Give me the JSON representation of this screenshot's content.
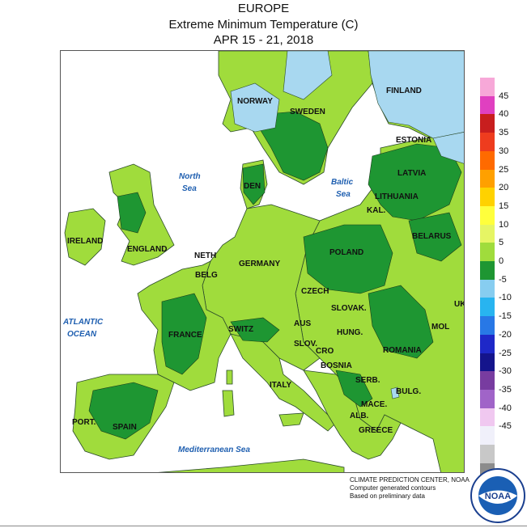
{
  "header": {
    "region": "EUROPE",
    "variable": "Extreme Minimum Temperature (C)",
    "period": "APR 15 - 21, 2018"
  },
  "legend": {
    "ticks": [
      "45",
      "40",
      "35",
      "30",
      "25",
      "20",
      "15",
      "10",
      "5",
      "0",
      "-5",
      "-10",
      "-15",
      "-20",
      "-25",
      "-30",
      "-35",
      "-40",
      "-45"
    ],
    "colors": [
      "#f7a8d8",
      "#e040c0",
      "#c81e1e",
      "#ee3c1e",
      "#ff6a00",
      "#ffa000",
      "#ffd200",
      "#ffff3c",
      "#e6f564",
      "#a0dc3c",
      "#1e9632",
      "#87cdf0",
      "#28b4f0",
      "#2878e6",
      "#1e28c8",
      "#14148c",
      "#783ca0",
      "#a064c8",
      "#f0c8f0",
      "#f0f0fa",
      "#c8c8c8",
      "#8c8c8c"
    ]
  },
  "map_labels": {
    "countries": [
      "NORWAY",
      "SWEDEN",
      "FINLAND",
      "ESTONIA",
      "LATVIA",
      "LITHUANIA",
      "KAL.",
      "BELARUS",
      "DEN",
      "IRELAND",
      "ENGLAND",
      "NETH",
      "BELG",
      "GERMANY",
      "POLAND",
      "CZECH",
      "SLOVAK.",
      "UK",
      "MOL",
      "FRANCE",
      "SWITZ",
      "AUS",
      "HUNG.",
      "SLOV.",
      "CRO",
      "ROMANIA",
      "BOSNIA",
      "SERB.",
      "BULG.",
      "ITALY",
      "MACE.",
      "ALB.",
      "GREECE",
      "PORT.",
      "SPAIN"
    ],
    "seas": [
      "North Sea",
      "Baltic Sea",
      "ATLANTIC OCEAN",
      "Mediterranean Sea"
    ]
  },
  "credits": {
    "line1": "CLIMATE PREDICTION CENTER, NOAA",
    "line2": "Computer generated contours",
    "line3": "Based on preliminary data"
  },
  "logo": {
    "text": "NOAA"
  }
}
